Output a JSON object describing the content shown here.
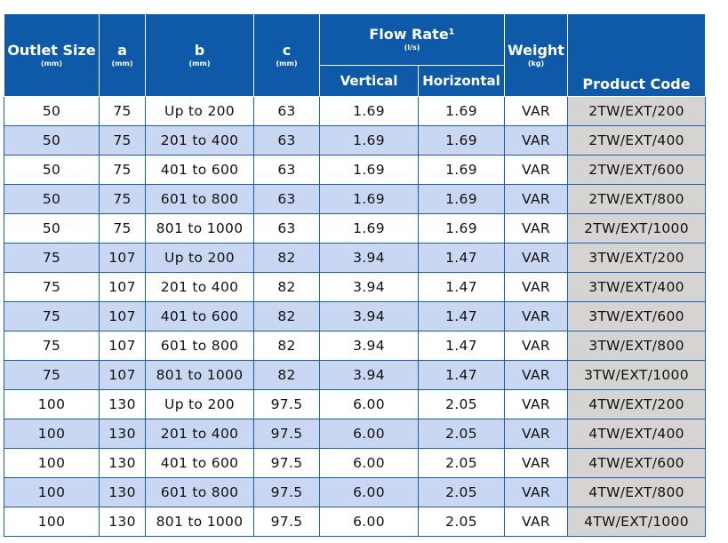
{
  "headers": {
    "outlet_size": {
      "label": "Outlet Size",
      "unit": "(mm)"
    },
    "a": {
      "label": "a",
      "unit": "(mm)"
    },
    "b": {
      "label": "b",
      "unit": "(mm)"
    },
    "c": {
      "label": "c",
      "unit": "(mm)"
    },
    "flow_rate": {
      "label": "Flow Rate¹",
      "unit": "(l/s)",
      "vertical": "Vertical",
      "horizontal": "Horizontal"
    },
    "weight": {
      "label": "Weight",
      "unit": "(kg)"
    },
    "product_code": {
      "label": "Product Code"
    }
  },
  "rows": [
    [
      "50",
      "75",
      "Up to 200",
      "63",
      "1.69",
      "1.69",
      "VAR",
      "2TW/EXT/200"
    ],
    [
      "50",
      "75",
      "201 to 400",
      "63",
      "1.69",
      "1.69",
      "VAR",
      "2TW/EXT/400"
    ],
    [
      "50",
      "75",
      "401 to 600",
      "63",
      "1.69",
      "1.69",
      "VAR",
      "2TW/EXT/600"
    ],
    [
      "50",
      "75",
      "601 to 800",
      "63",
      "1.69",
      "1.69",
      "VAR",
      "2TW/EXT/800"
    ],
    [
      "50",
      "75",
      "801 to 1000",
      "63",
      "1.69",
      "1.69",
      "VAR",
      "2TW/EXT/1000"
    ],
    [
      "75",
      "107",
      "Up to 200",
      "82",
      "3.94",
      "1.47",
      "VAR",
      "3TW/EXT/200"
    ],
    [
      "75",
      "107",
      "201 to 400",
      "82",
      "3.94",
      "1.47",
      "VAR",
      "3TW/EXT/400"
    ],
    [
      "75",
      "107",
      "401 to 600",
      "82",
      "3.94",
      "1.47",
      "VAR",
      "3TW/EXT/600"
    ],
    [
      "75",
      "107",
      "601 to 800",
      "82",
      "3.94",
      "1.47",
      "VAR",
      "3TW/EXT/800"
    ],
    [
      "75",
      "107",
      "801 to 1000",
      "82",
      "3.94",
      "1.47",
      "VAR",
      "3TW/EXT/1000"
    ],
    [
      "100",
      "130",
      "Up to 200",
      "97.5",
      "6.00",
      "2.05",
      "VAR",
      "4TW/EXT/200"
    ],
    [
      "100",
      "130",
      "201 to 400",
      "97.5",
      "6.00",
      "2.05",
      "VAR",
      "4TW/EXT/400"
    ],
    [
      "100",
      "130",
      "401 to 600",
      "97.5",
      "6.00",
      "2.05",
      "VAR",
      "4TW/EXT/600"
    ],
    [
      "100",
      "130",
      "601 to 800",
      "97.5",
      "6.00",
      "2.05",
      "VAR",
      "4TW/EXT/800"
    ],
    [
      "100",
      "130",
      "801 to 1000",
      "97.5",
      "6.00",
      "2.05",
      "VAR",
      "4TW/EXT/1000"
    ]
  ],
  "colors": {
    "header_bg": "#0f5aa8",
    "header_text": "#ffffff",
    "row_alt": "#c9d7f2",
    "code_col": "#d6d3d3"
  }
}
